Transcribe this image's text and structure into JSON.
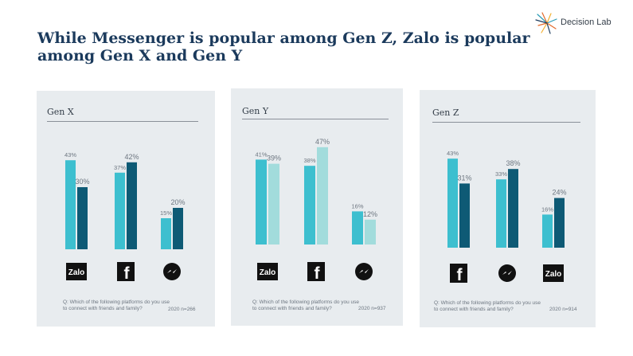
{
  "header": {
    "title": "While Messenger is popular among Gen Z, Zalo is popular among Gen X and Gen Y",
    "brand": "Decision Lab"
  },
  "colors": {
    "light_teal": "#3dbfcf",
    "dark_teal": "#0e5a75",
    "pale_teal": "#a2dcdc",
    "panel_bg": "#e8ecef",
    "title": "#1b3a5c"
  },
  "chart_data": [
    {
      "type": "bar",
      "title": "Gen X",
      "categories": [
        "Zalo",
        "Facebook",
        "Messenger"
      ],
      "category_icons": [
        "zalo-icon",
        "facebook-icon",
        "messenger-icon"
      ],
      "series": [
        {
          "color": "#3dbfcf",
          "values": [
            43,
            37,
            15
          ]
        },
        {
          "color": "#0e5a75",
          "values": [
            30,
            42,
            20
          ]
        }
      ],
      "ylim": [
        0,
        50
      ],
      "question": "Q: Which of the following platforms do you use to connect with friends and family?",
      "year": "2020",
      "sample": "n=266"
    },
    {
      "type": "bar",
      "title": "Gen Y",
      "categories": [
        "Zalo",
        "Facebook",
        "Messenger"
      ],
      "category_icons": [
        "zalo-icon",
        "facebook-icon",
        "messenger-icon"
      ],
      "series": [
        {
          "color": "#3dbfcf",
          "values": [
            41,
            38,
            16
          ]
        },
        {
          "color": "#a2dcdc",
          "values": [
            39,
            47,
            12
          ]
        }
      ],
      "ylim": [
        0,
        50
      ],
      "question": "Q: Which of the following platforms do you use to connect with friends and family?",
      "year": "2020",
      "sample": "n=937"
    },
    {
      "type": "bar",
      "title": "Gen Z",
      "categories": [
        "Facebook",
        "Messenger",
        "Zalo"
      ],
      "category_icons": [
        "facebook-icon",
        "messenger-icon",
        "zalo-icon"
      ],
      "series": [
        {
          "color": "#3dbfcf",
          "values": [
            43,
            33,
            16
          ]
        },
        {
          "color": "#0e5a75",
          "values": [
            31,
            38,
            24
          ]
        }
      ],
      "ylim": [
        0,
        50
      ],
      "question": "Q: Which of the following platforms do you use to connect with friends and family?",
      "year": "2020",
      "sample": "n=914"
    }
  ]
}
